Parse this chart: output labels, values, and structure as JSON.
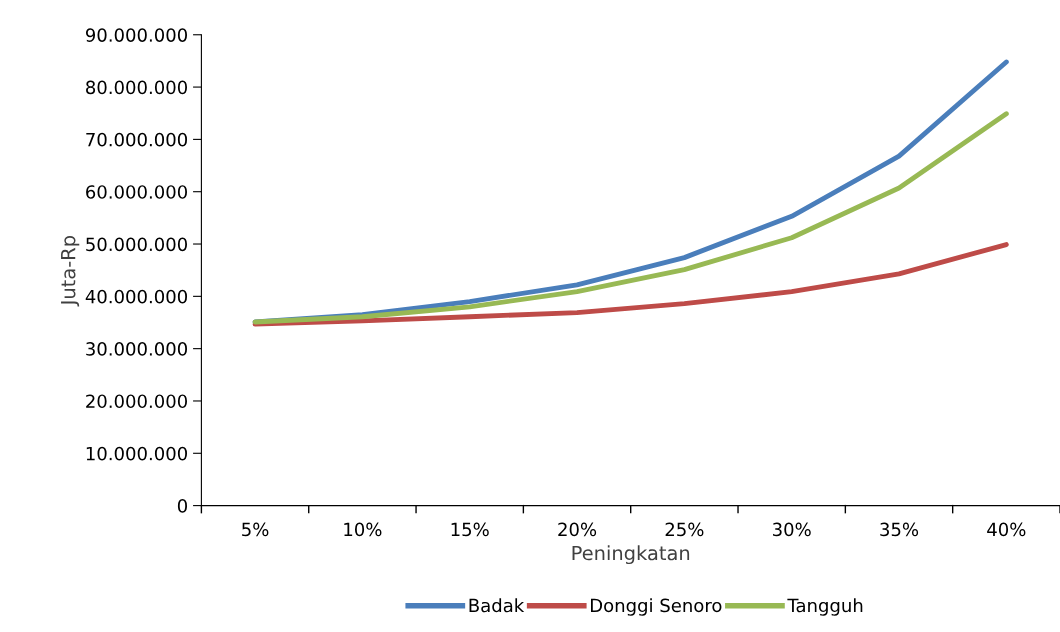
{
  "chart_data": {
    "type": "line",
    "xlabel": "Peningkatan",
    "ylabel": "Juta-Rp",
    "categories": [
      "5%",
      "10%",
      "15%",
      "20%",
      "25%",
      "30%",
      "35%",
      "40%"
    ],
    "series": [
      {
        "name": "Badak",
        "color": "#4a7ebb",
        "values": [
          35100000,
          36500000,
          39000000,
          42200000,
          47400000,
          55300000,
          66800000,
          84800000
        ]
      },
      {
        "name": "Donggi Senoro",
        "color": "#be4b48",
        "values": [
          34700000,
          35300000,
          36100000,
          36900000,
          38600000,
          40900000,
          44300000,
          49900000
        ]
      },
      {
        "name": "Tangguh",
        "color": "#98b954",
        "values": [
          35100000,
          36100000,
          38000000,
          40900000,
          45100000,
          51200000,
          60700000,
          74900000
        ]
      }
    ],
    "ylim": [
      0,
      90000000
    ],
    "yticks": [
      0,
      {
        "value": 10000000,
        "label": "10.000.000"
      },
      {
        "value": 20000000,
        "label": "20.000.000"
      },
      {
        "value": 30000000,
        "label": "30.000.000"
      },
      {
        "value": 40000000,
        "label": "40.000.000"
      },
      {
        "value": 50000000,
        "label": "50.000.000"
      },
      {
        "value": 60000000,
        "label": "60.000.000"
      },
      {
        "value": 70000000,
        "label": "70.000.000"
      },
      {
        "value": 80000000,
        "label": "80.000.000"
      },
      {
        "value": 90000000,
        "label": "90.000.000"
      }
    ],
    "grid": false,
    "legend": "bottom",
    "marker": "none",
    "line_style": "solid"
  }
}
